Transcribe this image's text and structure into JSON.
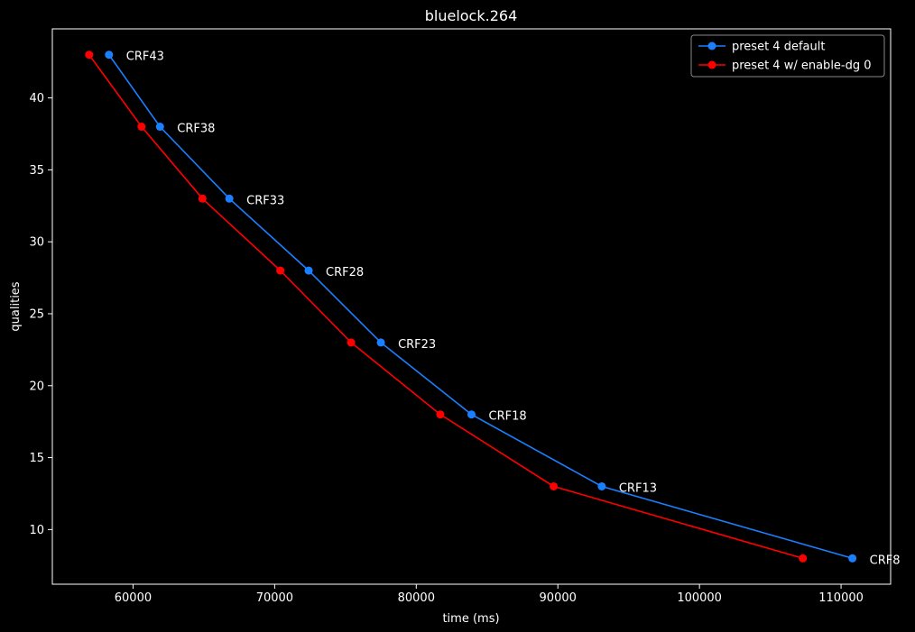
{
  "chart_data": {
    "type": "line",
    "title": "bluelock.264",
    "xlabel": "time (ms)",
    "ylabel": "qualities",
    "xlim": [
      54300,
      113500
    ],
    "ylim": [
      6.2,
      44.8
    ],
    "xticks": [
      60000,
      70000,
      80000,
      90000,
      100000,
      110000
    ],
    "xtick_labels": [
      "60000",
      "70000",
      "80000",
      "90000",
      "100000",
      "110000"
    ],
    "yticks": [
      10,
      15,
      20,
      25,
      30,
      35,
      40
    ],
    "ytick_labels": [
      "10",
      "15",
      "20",
      "25",
      "30",
      "35",
      "40"
    ],
    "grid": false,
    "legend_position": "top-right",
    "series": [
      {
        "name": "preset 4 default",
        "color": "#1a80ff",
        "x": [
          58300,
          61900,
          66800,
          72400,
          77500,
          83900,
          93100,
          110800
        ],
        "y": [
          43,
          38,
          33,
          28,
          23,
          18,
          13,
          8
        ]
      },
      {
        "name": "preset 4 w/ enable-dg 0",
        "color": "#ff0000",
        "x": [
          56900,
          60600,
          64900,
          70400,
          75400,
          81700,
          89700,
          107300
        ],
        "y": [
          43,
          38,
          33,
          28,
          23,
          18,
          13,
          8
        ]
      }
    ],
    "annotations": [
      {
        "text": "CRF43",
        "x": 58300,
        "y": 43
      },
      {
        "text": "CRF38",
        "x": 61900,
        "y": 38
      },
      {
        "text": "CRF33",
        "x": 66800,
        "y": 33
      },
      {
        "text": "CRF28",
        "x": 72400,
        "y": 28
      },
      {
        "text": "CRF23",
        "x": 77500,
        "y": 23
      },
      {
        "text": "CRF18",
        "x": 83900,
        "y": 18
      },
      {
        "text": "CRF13",
        "x": 93100,
        "y": 13
      },
      {
        "text": "CRF8",
        "x": 110800,
        "y": 8
      }
    ]
  }
}
